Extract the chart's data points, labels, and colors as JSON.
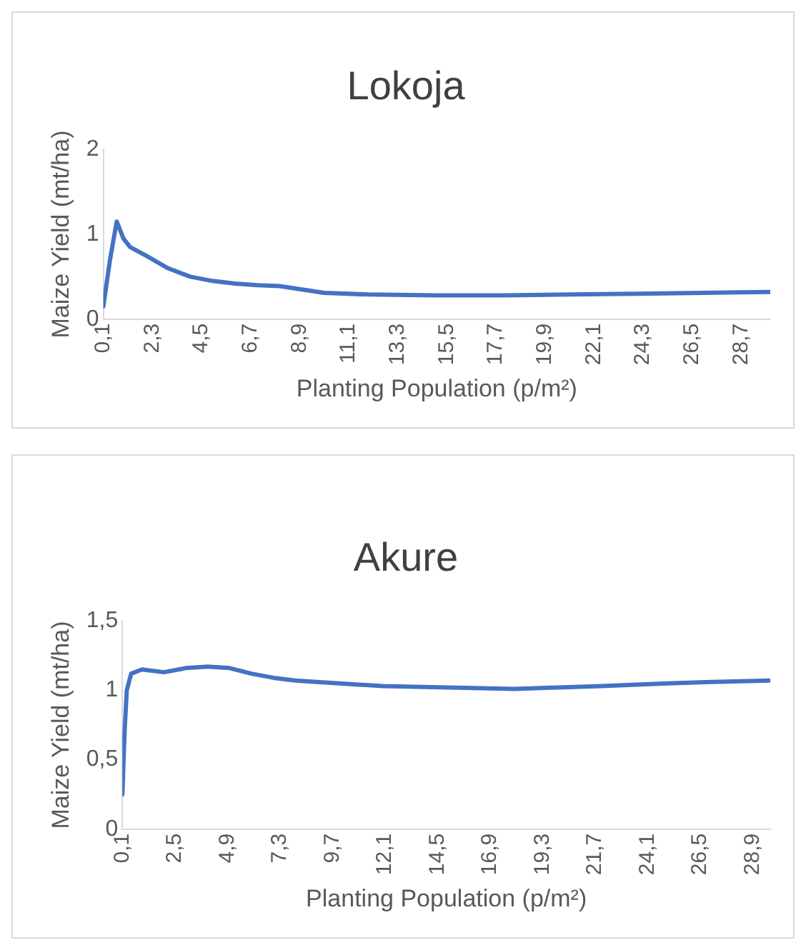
{
  "chart_data": [
    {
      "type": "line",
      "title": "Lokoja",
      "xlabel": "Planting Population (p/m²)",
      "ylabel": "Maize Yield (mt/ha)",
      "x": [
        0.1,
        0.4,
        0.7,
        1.0,
        1.3,
        2,
        3,
        4,
        5,
        6,
        7,
        8,
        9,
        10,
        12,
        15,
        18,
        21,
        24,
        27,
        30
      ],
      "series": [
        {
          "color": "#4472c4",
          "values": [
            0.15,
            0.7,
            1.15,
            0.95,
            0.85,
            0.75,
            0.6,
            0.5,
            0.45,
            0.42,
            0.4,
            0.39,
            0.35,
            0.31,
            0.29,
            0.28,
            0.28,
            0.29,
            0.3,
            0.31,
            0.32
          ]
        }
      ],
      "xlim": [
        0.1,
        30
      ],
      "xticks": [
        {
          "value": 0.1,
          "label": "0,1"
        },
        {
          "value": 2.3,
          "label": "2,3"
        },
        {
          "value": 4.5,
          "label": "4,5"
        },
        {
          "value": 6.7,
          "label": "6,7"
        },
        {
          "value": 8.9,
          "label": "8,9"
        },
        {
          "value": 11.1,
          "label": "11,1"
        },
        {
          "value": 13.3,
          "label": "13,3"
        },
        {
          "value": 15.5,
          "label": "15,5"
        },
        {
          "value": 17.7,
          "label": "17,7"
        },
        {
          "value": 19.9,
          "label": "19,9"
        },
        {
          "value": 22.1,
          "label": "22,1"
        },
        {
          "value": 24.3,
          "label": "24,3"
        },
        {
          "value": 26.5,
          "label": "26,5"
        },
        {
          "value": 28.7,
          "label": "28,7"
        }
      ],
      "ylim": [
        0,
        2
      ],
      "yticks": [
        0,
        1,
        2
      ],
      "grid": false,
      "legend": false,
      "marker": "none",
      "line_style": "solid"
    },
    {
      "type": "line",
      "title": "Akure",
      "xlabel": "Planting Population (p/m²)",
      "ylabel": "Maize Yield (mt/ha)",
      "x": [
        0.1,
        0.2,
        0.3,
        0.5,
        1,
        2,
        3,
        4,
        5,
        6,
        7,
        8,
        10,
        12,
        15,
        18,
        20,
        22,
        25,
        27,
        29.7
      ],
      "series": [
        {
          "color": "#4472c4",
          "values": [
            0.25,
            0.7,
            1.0,
            1.12,
            1.15,
            1.13,
            1.16,
            1.17,
            1.16,
            1.12,
            1.09,
            1.07,
            1.05,
            1.03,
            1.02,
            1.01,
            1.02,
            1.03,
            1.05,
            1.06,
            1.07
          ]
        }
      ],
      "xlim": [
        0.1,
        29.7
      ],
      "xticks": [
        {
          "value": 0.1,
          "label": "0,1"
        },
        {
          "value": 2.5,
          "label": "2,5"
        },
        {
          "value": 4.9,
          "label": "4,9"
        },
        {
          "value": 7.3,
          "label": "7,3"
        },
        {
          "value": 9.7,
          "label": "9,7"
        },
        {
          "value": 12.1,
          "label": "12,1"
        },
        {
          "value": 14.5,
          "label": "14,5"
        },
        {
          "value": 16.9,
          "label": "16,9"
        },
        {
          "value": 19.3,
          "label": "19,3"
        },
        {
          "value": 21.7,
          "label": "21,7"
        },
        {
          "value": 24.1,
          "label": "24,1"
        },
        {
          "value": 26.5,
          "label": "26,5"
        },
        {
          "value": 28.9,
          "label": "28,9"
        }
      ],
      "ylim": [
        0,
        1.5
      ],
      "yticks": [
        0,
        {
          "value": 0.5,
          "label": "0,5"
        },
        1,
        {
          "value": 1.5,
          "label": "1,5"
        }
      ],
      "grid": false,
      "legend": false,
      "marker": "none",
      "line_style": "solid"
    }
  ]
}
